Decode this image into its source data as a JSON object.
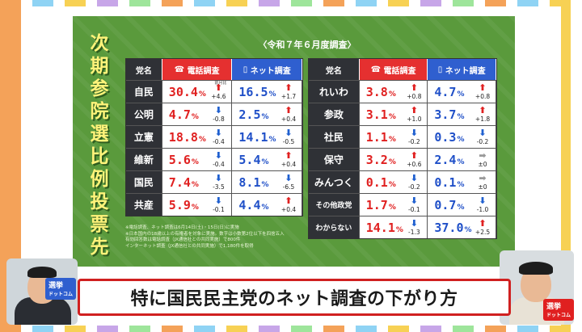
{
  "title_vertical": [
    "次",
    "期",
    "参",
    "院",
    "選",
    "比",
    "例",
    "投",
    "票",
    "先"
  ],
  "survey_label": "〈令和７年６月度調査〉",
  "headers": {
    "party": "党名",
    "phone": "電話調査",
    "net": "ネット調査",
    "prev_label": "前月比"
  },
  "left_table": [
    {
      "party": "自民",
      "phone": "30.4",
      "phone_dir": "up",
      "phone_chg": "+4.6",
      "net": "16.5",
      "net_dir": "up",
      "net_chg": "+1.7"
    },
    {
      "party": "公明",
      "phone": "4.7",
      "phone_dir": "down",
      "phone_chg": "-0.8",
      "net": "2.5",
      "net_dir": "up",
      "net_chg": "+0.4"
    },
    {
      "party": "立憲",
      "phone": "18.8",
      "phone_dir": "down",
      "phone_chg": "-0.4",
      "net": "14.1",
      "net_dir": "down",
      "net_chg": "-0.5"
    },
    {
      "party": "維新",
      "phone": "5.6",
      "phone_dir": "down",
      "phone_chg": "-0.4",
      "net": "5.4",
      "net_dir": "up",
      "net_chg": "+0.4"
    },
    {
      "party": "国民",
      "phone": "7.4",
      "phone_dir": "down",
      "phone_chg": "-3.5",
      "net": "8.1",
      "net_dir": "down",
      "net_chg": "-6.5"
    },
    {
      "party": "共産",
      "phone": "5.9",
      "phone_dir": "down",
      "phone_chg": "-0.1",
      "net": "4.4",
      "net_dir": "up",
      "net_chg": "+0.4"
    }
  ],
  "right_table": [
    {
      "party": "れいわ",
      "phone": "3.8",
      "phone_dir": "up",
      "phone_chg": "+0.8",
      "net": "4.7",
      "net_dir": "up",
      "net_chg": "+0.8"
    },
    {
      "party": "参政",
      "phone": "3.1",
      "phone_dir": "up",
      "phone_chg": "+1.0",
      "net": "3.7",
      "net_dir": "up",
      "net_chg": "+1.8"
    },
    {
      "party": "社民",
      "phone": "1.1",
      "phone_dir": "down",
      "phone_chg": "-0.2",
      "net": "0.3",
      "net_dir": "down",
      "net_chg": "-0.2"
    },
    {
      "party": "保守",
      "phone": "3.2",
      "phone_dir": "up",
      "phone_chg": "+0.6",
      "net": "2.4",
      "net_dir": "flat",
      "net_chg": "±0"
    },
    {
      "party": "みんつく",
      "phone": "0.1",
      "phone_dir": "down",
      "phone_chg": "-0.2",
      "net": "0.1",
      "net_dir": "flat",
      "net_chg": "±0"
    },
    {
      "party": "その他政党",
      "phone": "1.7",
      "phone_dir": "down",
      "phone_chg": "-0.1",
      "net": "0.7",
      "net_dir": "down",
      "net_chg": "-1.0"
    },
    {
      "party": "わからない",
      "phone": "14.1",
      "phone_dir": "down",
      "phone_chg": "-1.3",
      "net": "37.0",
      "net_dir": "up",
      "net_chg": "+2.5"
    }
  ],
  "notes": [
    "※電話調査、ネット調査は6月14日(土)・15日(日)に実施",
    "※日本国内の18歳以上の有権者を対象に実施。数字は小数第2位以下を四捨五入",
    "有効回答数は電話調査（JX通信社との共同実施）で800件",
    "インターネット調査（JX通信社との共同実施）で1,180件を取得"
  ],
  "caption": "特に国民民主党のネット調査の下がり方",
  "logos": {
    "left_brand": "選挙",
    "left_sub": "ドットコム",
    "right_brand": "選挙",
    "right_sub": "ドットコム"
  }
}
